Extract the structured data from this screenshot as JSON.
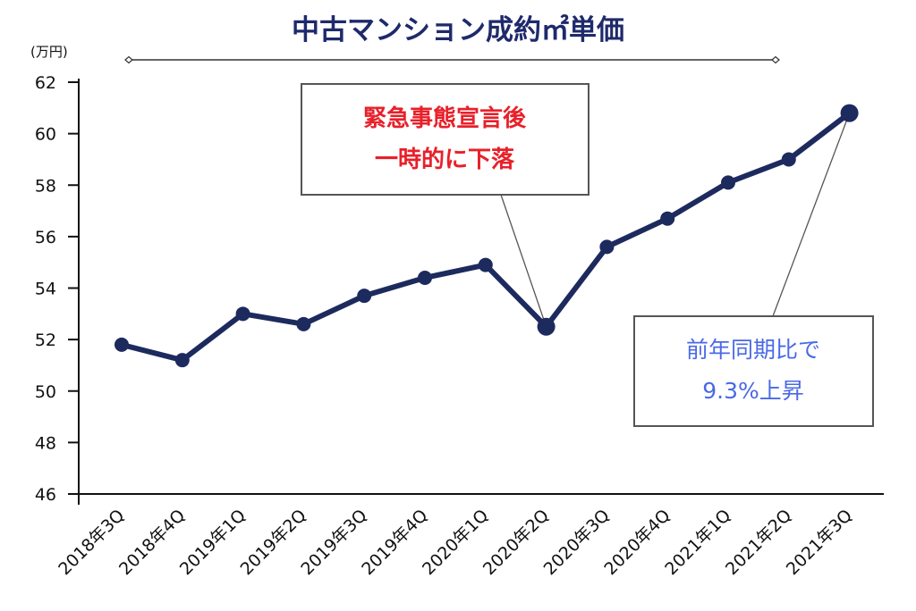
{
  "chart_data": {
    "type": "line",
    "title": "中古マンション成約㎡単価",
    "ylabel": "(万円)",
    "ylim": [
      46,
      62
    ],
    "yticks": [
      46,
      48,
      50,
      52,
      54,
      56,
      58,
      60,
      62
    ],
    "categories": [
      "2018年3Q",
      "2018年4Q",
      "2019年1Q",
      "2019年2Q",
      "2019年3Q",
      "2019年4Q",
      "2020年1Q",
      "2020年2Q",
      "2020年3Q",
      "2020年4Q",
      "2021年1Q",
      "2021年2Q",
      "2021年3Q"
    ],
    "series": [
      {
        "values": [
          51.8,
          51.2,
          53.0,
          52.6,
          53.7,
          54.4,
          54.9,
          52.5,
          55.6,
          56.7,
          58.1,
          59.0,
          60.8
        ]
      }
    ],
    "annotations": [
      {
        "lines": [
          "緊急事態宣言後",
          "一時的に下落"
        ],
        "target": "2020年2Q",
        "color": "#e8202a"
      },
      {
        "lines": [
          "前年同期比で",
          "9.3%上昇"
        ],
        "target": "2021年3Q",
        "color": "#4a69e6"
      }
    ],
    "grid": false,
    "legend": "none"
  },
  "colors": {
    "title": "#1f2a6b",
    "line": "#1c2a5e",
    "axis": "#111111"
  }
}
